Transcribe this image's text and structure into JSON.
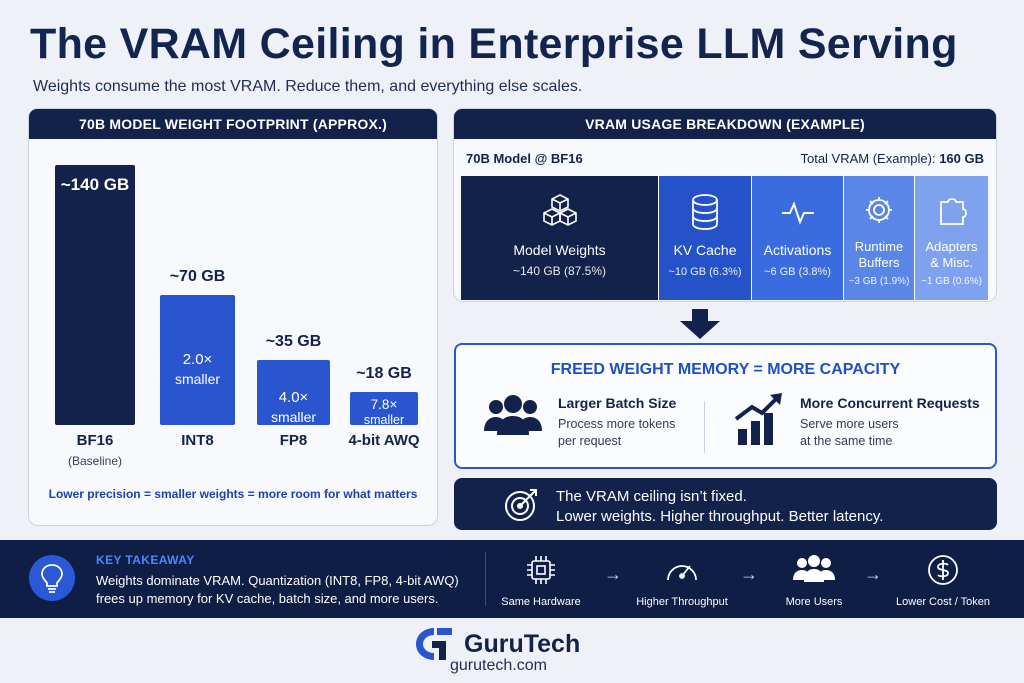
{
  "header": {
    "title": "The VRAM Ceiling in Enterprise LLM Serving",
    "subtitle": "Weights consume the most VRAM. Reduce them, and everything else scales."
  },
  "left_panel": {
    "heading": "70B MODEL WEIGHT FOOTPRINT (APPROX.)",
    "bars": [
      {
        "name": "BF16",
        "sub": "(Baseline)",
        "value_label": "~140 GB",
        "inner_line1": "",
        "inner_line2": "",
        "gb": 140,
        "color": "#13224a"
      },
      {
        "name": "INT8",
        "sub": "",
        "value_label": "~70 GB",
        "inner_line1": "2.0×",
        "inner_line2": "smaller",
        "gb": 70,
        "color": "#2a55cf"
      },
      {
        "name": "FP8",
        "sub": "",
        "value_label": "~35 GB",
        "inner_line1": "4.0×",
        "inner_line2": "smaller",
        "gb": 35,
        "color": "#2a55cf"
      },
      {
        "name": "4-bit AWQ",
        "sub": "",
        "value_label": "~18 GB",
        "inner_line1": "7.8×",
        "inner_line2": "smaller",
        "gb": 18,
        "color": "#2a55cf"
      }
    ],
    "note": "Lower precision = smaller weights = more room for what matters"
  },
  "right_panel": {
    "heading": "VRAM USAGE BREAKDOWN (EXAMPLE)",
    "model_line": "70B Model @ BF16",
    "total_label": "Total VRAM (Example): ",
    "total_value": "160 GB",
    "segments": [
      {
        "name_line1": "Model Weights",
        "name_line2": "",
        "value": "~140 GB (87.5%)",
        "icon": "cubes-icon",
        "color": "#13224a"
      },
      {
        "name_line1": "KV Cache",
        "name_line2": "",
        "value": "~10 GB (6.3%)",
        "icon": "database-icon",
        "color": "#2552c9"
      },
      {
        "name_line1": "Activations",
        "name_line2": "",
        "value": "~6 GB (3.8%)",
        "icon": "pulse-icon",
        "color": "#3a6ce0"
      },
      {
        "name_line1": "Runtime",
        "name_line2": "Buffers",
        "value": "~3 GB (1.9%)",
        "icon": "gear-icon",
        "color": "#5a86e8"
      },
      {
        "name_line1": "Adapters",
        "name_line2": "& Misc.",
        "value": "~1 GB (0.6%)",
        "icon": "puzzle-icon",
        "color": "#7ea2ee"
      }
    ]
  },
  "capacity": {
    "title": "FREED WEIGHT MEMORY = MORE CAPACITY",
    "items": [
      {
        "heading": "Larger Batch Size",
        "line1": "Process more tokens",
        "line2": "per request",
        "icon": "users-group-icon"
      },
      {
        "heading": "More Concurrent Requests",
        "line1": "Serve more users",
        "line2": "at the same time",
        "icon": "growth-chart-icon"
      }
    ]
  },
  "ceiling": {
    "line1": "The VRAM ceiling isn’t fixed.",
    "line2": "Lower weights. Higher throughput. Better latency."
  },
  "takeaway": {
    "label": "KEY TAKEAWAY",
    "line1": "Weights dominate VRAM. Quantization (INT8, FP8, 4-bit AWQ)",
    "line2": "frees up memory for KV cache, batch size, and more users."
  },
  "flow": [
    {
      "label": "Same Hardware",
      "icon": "chip-icon"
    },
    {
      "label": "Higher Throughput",
      "icon": "speedometer-icon"
    },
    {
      "label": "More Users",
      "icon": "users-icon"
    },
    {
      "label": "Lower Cost / Token",
      "icon": "dollar-icon"
    }
  ],
  "brand": {
    "name": "GuruTech",
    "url": "gurutech.com"
  },
  "colors": {
    "navy": "#13224a",
    "accent_blue": "#2a55cf",
    "band": "#0f1e45"
  }
}
